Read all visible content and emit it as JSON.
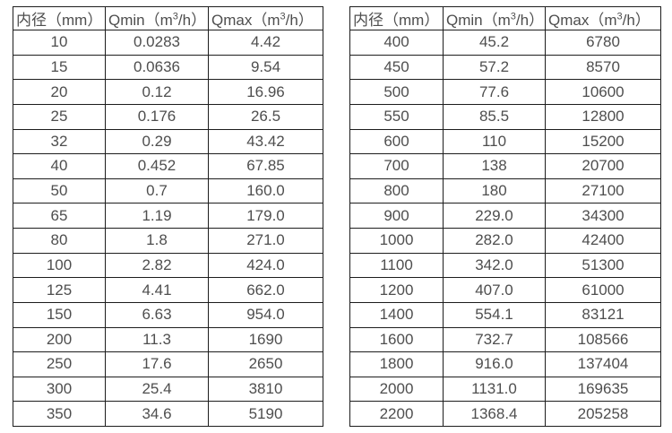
{
  "colors": {
    "background": "#ffffff",
    "border": "#1d1d1d",
    "text": "#4e4e4e"
  },
  "tables": [
    {
      "id": "left",
      "headers": [
        {
          "text": "内径（mm）"
        },
        {
          "pre": "Qmin（m",
          "sup": "3",
          "post": "/h）"
        },
        {
          "pre": "Qmax（m",
          "sup": "3",
          "post": "/h）"
        }
      ],
      "rows": [
        [
          "10",
          "0.0283",
          "4.42"
        ],
        [
          "15",
          "0.0636",
          "9.54"
        ],
        [
          "20",
          "0.12",
          "16.96"
        ],
        [
          "25",
          "0.176",
          "26.5"
        ],
        [
          "32",
          "0.29",
          "43.42"
        ],
        [
          "40",
          "0.452",
          "67.85"
        ],
        [
          "50",
          "0.7",
          "160.0"
        ],
        [
          "65",
          "1.19",
          "179.0"
        ],
        [
          "80",
          "1.8",
          "271.0"
        ],
        [
          "100",
          "2.82",
          "424.0"
        ],
        [
          "125",
          "4.41",
          "662.0"
        ],
        [
          "150",
          "6.63",
          "954.0"
        ],
        [
          "200",
          "11.3",
          "1690"
        ],
        [
          "250",
          "17.6",
          "2650"
        ],
        [
          "300",
          "25.4",
          "3810"
        ],
        [
          "350",
          "34.6",
          "5190"
        ]
      ]
    },
    {
      "id": "right",
      "headers": [
        {
          "text": "内径（mm）"
        },
        {
          "pre": "Qmin（m",
          "sup": "3",
          "post": "/h）"
        },
        {
          "pre": "Qmax（m",
          "sup": "3",
          "post": "/h）"
        }
      ],
      "rows": [
        [
          "400",
          "45.2",
          "6780"
        ],
        [
          "450",
          "57.2",
          "8570"
        ],
        [
          "500",
          "77.6",
          "10600"
        ],
        [
          "550",
          "85.5",
          "12800"
        ],
        [
          "600",
          "110",
          "15200"
        ],
        [
          "700",
          "138",
          "20700"
        ],
        [
          "800",
          "180",
          "27100"
        ],
        [
          "900",
          "229.0",
          "34300"
        ],
        [
          "1000",
          "282.0",
          "42400"
        ],
        [
          "1100",
          "342.0",
          "51300"
        ],
        [
          "1200",
          "407.0",
          "61000"
        ],
        [
          "1400",
          "554.1",
          "83121"
        ],
        [
          "1600",
          "732.7",
          "108566"
        ],
        [
          "1800",
          "916.0",
          "137404"
        ],
        [
          "2000",
          "1131.0",
          "169635"
        ],
        [
          "2200",
          "1368.4",
          "205258"
        ]
      ]
    }
  ]
}
